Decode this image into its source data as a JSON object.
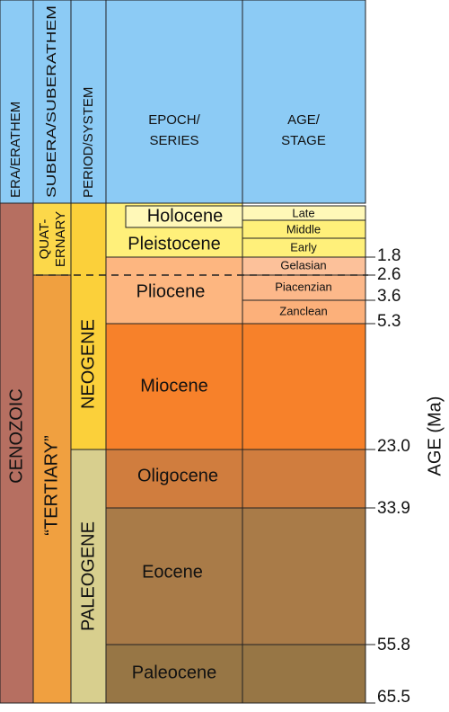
{
  "header": {
    "era": "ERA/ERATHEM",
    "subera": "SUBERA/SUBERATHEM",
    "period": "PERIOD/SYSTEM",
    "epoch": [
      "EPOCH/",
      "SERIES"
    ],
    "age": [
      "AGE/",
      "STAGE"
    ]
  },
  "era": "CENOZOIC",
  "subera": {
    "quaternary": [
      "QUAT-",
      "ERNARY"
    ],
    "tertiary": "“TERTIARY”"
  },
  "periods": [
    "NEOGENE",
    "PALEOGENE"
  ],
  "epochs": [
    "Holocene",
    "Pleistocene",
    "Pliocene",
    "Miocene",
    "Oligocene",
    "Eocene",
    "Paleocene"
  ],
  "stages": [
    "Late",
    "Middle",
    "Early",
    "Gelasian",
    "Piacenzian",
    "Zanclean"
  ],
  "age_ticks": [
    "1.8",
    "2.6",
    "3.6",
    "5.3",
    "23.0",
    "33.9",
    "55.8",
    "65.5"
  ],
  "axis_label": "AGE (Ma)"
}
